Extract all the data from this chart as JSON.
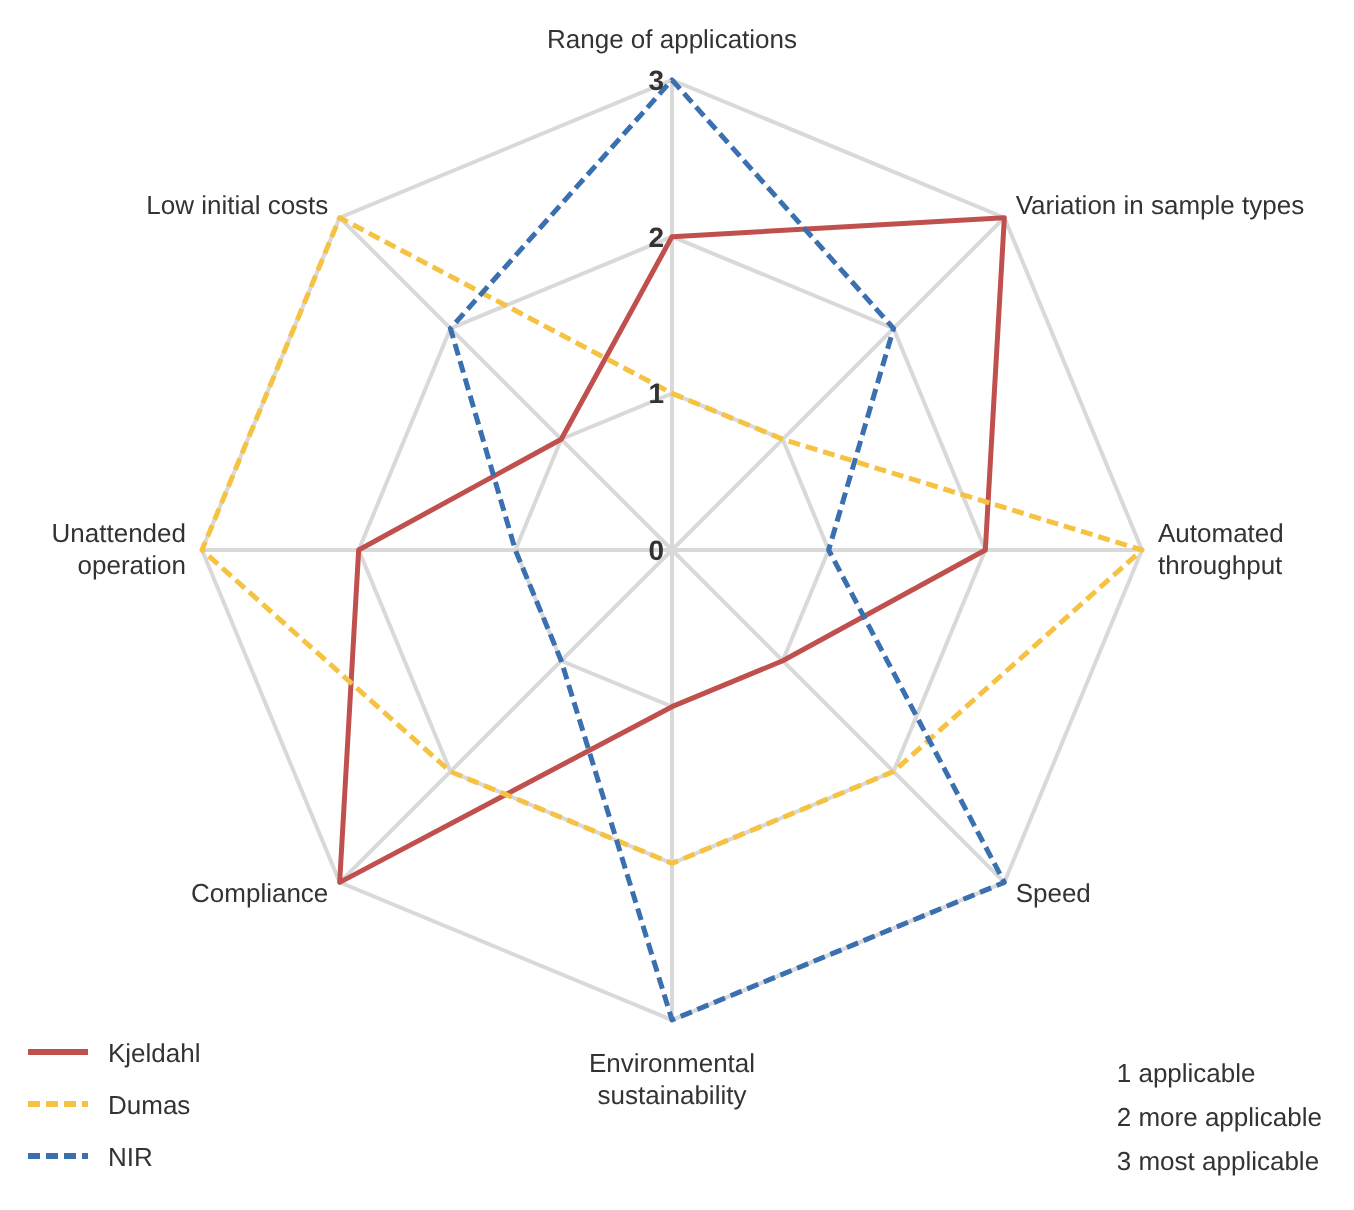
{
  "chart_data": {
    "type": "radar",
    "categories": [
      "Range of applications",
      "Variation in sample types",
      "Automated throughput",
      "Speed",
      "Environmental sustainability",
      "Compliance",
      "Unattended operation",
      "Low initial costs"
    ],
    "series": [
      {
        "name": "Kjeldahl",
        "color": "#c0504d",
        "line_style": "solid",
        "values": [
          2,
          3,
          2,
          1,
          1,
          3,
          2,
          1
        ]
      },
      {
        "name": "Dumas",
        "color": "#f5c242",
        "line_style": "dashed",
        "values": [
          1,
          1,
          3,
          2,
          2,
          2,
          3,
          3
        ]
      },
      {
        "name": "NIR",
        "color": "#3a6fb0",
        "line_style": "dashed",
        "values": [
          3,
          2,
          1,
          3,
          3,
          1,
          1,
          2
        ]
      }
    ],
    "ylim": [
      0,
      3
    ],
    "yticks": [
      0,
      1,
      2,
      3
    ],
    "grid": true,
    "legend": "bottom left",
    "marker": "none",
    "annotations": [
      "1 applicable",
      "2 more applicable",
      "3 most applicable"
    ]
  }
}
